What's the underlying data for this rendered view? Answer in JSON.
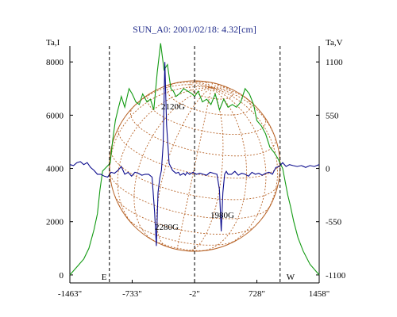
{
  "chart_data": {
    "type": "line",
    "title": "SUN_A0: 2001/02/18: 4.32[cm]",
    "left_axis_label": "Ta,I",
    "right_axis_label": "Ta,V",
    "x_ticks": [
      "-1463\"",
      "-733\"",
      "-2\"",
      "728\"",
      "1458\""
    ],
    "x_tick_values": [
      -1463,
      -733,
      -2,
      728,
      1458
    ],
    "x_range": [
      -1463,
      1458
    ],
    "y_left_ticks": [
      0,
      2000,
      4000,
      6000,
      8000
    ],
    "y_left_range": [
      -300,
      8600
    ],
    "y_right_ticks": [
      "1100",
      "550",
      "0",
      "-550",
      "-1100"
    ],
    "y_right_tick_values": [
      1100,
      550,
      0,
      -550,
      -1100
    ],
    "y_right_range": [
      -1100,
      1100
    ],
    "vertical_markers": [
      {
        "x": -1000,
        "label": "E"
      },
      {
        "x": -2,
        "label": ""
      },
      {
        "x": 1000,
        "label": "W"
      }
    ],
    "annotations": [
      "2120G",
      "2280G",
      "1980G"
    ],
    "colors": {
      "intensity": "#129a12",
      "polarization": "#0a0a8c",
      "solar_grid": "#b8652a",
      "title": "#1f2a8a"
    },
    "series": [
      {
        "axis": "left",
        "x": [
          -1463,
          -1380,
          -1300,
          -1240,
          -1180,
          -1140,
          -1110,
          -1080,
          -1050,
          -1020,
          -990,
          -960,
          -930,
          -900,
          -860,
          -820,
          -770,
          -733,
          -690,
          -650,
          -610,
          -560,
          -520,
          -480,
          -440,
          -400,
          -360,
          -320,
          -280,
          -250,
          -220,
          -180,
          -130,
          -80,
          -30,
          -2,
          40,
          90,
          140,
          190,
          240,
          290,
          340,
          390,
          440,
          490,
          540,
          590,
          640,
          690,
          728,
          780,
          830,
          880,
          930,
          970,
          1000,
          1030,
          1060,
          1090,
          1120,
          1160,
          1210,
          1270,
          1350,
          1458
        ],
        "y": [
          0,
          300,
          600,
          1000,
          1700,
          2300,
          3200,
          3900,
          4000,
          4100,
          4200,
          5100,
          5800,
          6200,
          6700,
          6300,
          7000,
          6800,
          6500,
          6400,
          6800,
          6500,
          6600,
          6200,
          7600,
          8700,
          7700,
          7900,
          7000,
          6900,
          6700,
          6800,
          7000,
          6900,
          6800,
          6700,
          6900,
          6500,
          6600,
          6400,
          6800,
          6200,
          6600,
          6300,
          6400,
          6300,
          6500,
          7000,
          6800,
          6400,
          5800,
          5600,
          5300,
          4800,
          4600,
          4400,
          4200,
          4000,
          3500,
          3000,
          2600,
          2000,
          1400,
          900,
          400,
          0
        ]
      },
      {
        "axis": "right",
        "x": [
          -1463,
          -1420,
          -1380,
          -1340,
          -1300,
          -1260,
          -1220,
          -1180,
          -1140,
          -1100,
          -1060,
          -1020,
          -980,
          -940,
          -900,
          -860,
          -820,
          -780,
          -740,
          -700,
          -660,
          -620,
          -580,
          -540,
          -500,
          -470,
          -450,
          -430,
          -410,
          -390,
          -370,
          -350,
          -330,
          -300,
          -260,
          -220,
          -190,
          -170,
          -150,
          -130,
          -110,
          -90,
          -60,
          -20,
          20,
          60,
          100,
          140,
          180,
          220,
          260,
          290,
          310,
          330,
          350,
          370,
          390,
          430,
          470,
          510,
          550,
          590,
          630,
          670,
          710,
          750,
          790,
          830,
          870,
          910,
          950,
          990,
          1030,
          1070,
          1110,
          1150,
          1200,
          1250,
          1300,
          1350,
          1400,
          1458
        ],
        "y": [
          40,
          30,
          60,
          70,
          40,
          60,
          10,
          -20,
          -60,
          -60,
          -80,
          -90,
          -40,
          -50,
          -20,
          20,
          -60,
          -40,
          -80,
          -40,
          -50,
          -70,
          -60,
          -60,
          -90,
          -450,
          -800,
          -250,
          -100,
          -20,
          250,
          1100,
          450,
          50,
          -20,
          -50,
          -40,
          -70,
          -60,
          -50,
          -70,
          -40,
          -60,
          -40,
          -60,
          -50,
          -60,
          -70,
          -40,
          -50,
          -60,
          -220,
          -650,
          -250,
          -60,
          -30,
          -60,
          -60,
          -30,
          -70,
          -50,
          -60,
          -80,
          -40,
          -60,
          -50,
          -70,
          -50,
          -40,
          -60,
          10,
          20,
          60,
          20,
          40,
          30,
          20,
          30,
          10,
          30,
          20,
          40
        ]
      }
    ]
  }
}
